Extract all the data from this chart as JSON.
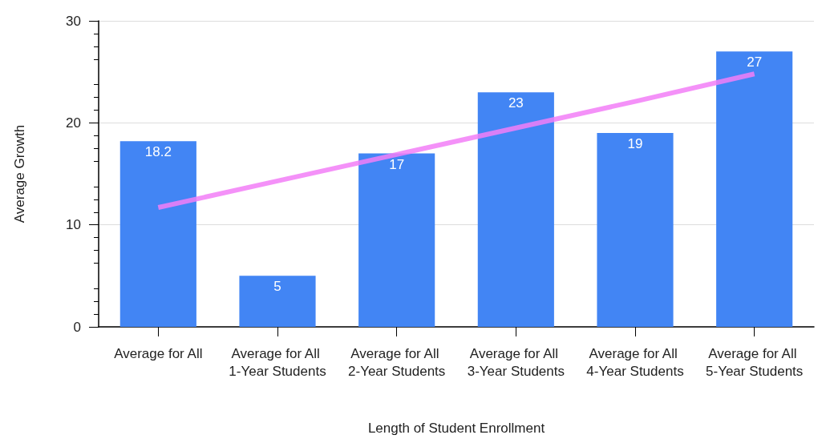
{
  "chart_data": {
    "type": "bar",
    "xlabel": "Length of Student Enrollment",
    "ylabel": "Average Growth",
    "categories": [
      "Average for All",
      "Average for All 1-Year Students",
      "Average for All 2-Year Students",
      "Average for All 3-Year Students",
      "Average for All 4-Year Students",
      "Average for All 5-Year Students"
    ],
    "series": [
      {
        "color": "#4285f4",
        "values": [
          18.2,
          5,
          17,
          23,
          19,
          27
        ],
        "value_labels": [
          "18.2",
          "5",
          "17",
          "23",
          "19",
          "27"
        ]
      },
      {
        "type": "line",
        "color": "#f27ef7",
        "x": [
          "Average for All",
          "Average for All 1-Year Students",
          "Average for All 2-Year Students",
          "Average for All 3-Year Students",
          "Average for All 4-Year Students",
          "Average for All 5-Year Students"
        ],
        "values": [
          11.7,
          14.3,
          16.9,
          19.5,
          22.1,
          24.8
        ]
      }
    ],
    "ylim": [
      0,
      30
    ],
    "yticks": [
      0,
      10,
      20,
      30
    ],
    "grid": "y",
    "marker": "none"
  }
}
